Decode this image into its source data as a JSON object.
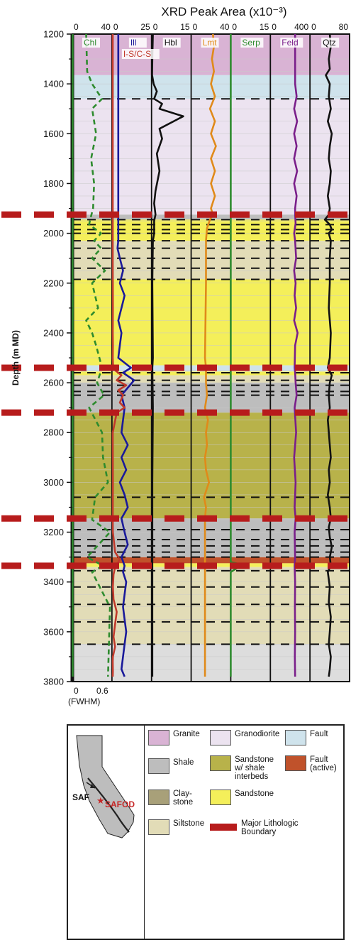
{
  "title": "XRD Peak Area (x10⁻³)",
  "ylabel": "Depth (m MD)",
  "fwhm_scale": {
    "ticks": [
      "0",
      "0.6"
    ],
    "label": "(FWHM)"
  },
  "chart_data": {
    "type": "line",
    "title": "XRD Peak Area (x10⁻³)",
    "ylabel": "Depth (m MD)",
    "ylim": [
      1200,
      3800
    ],
    "yticks": [
      1200,
      1400,
      1600,
      1800,
      2000,
      2200,
      2400,
      2600,
      2800,
      3000,
      3200,
      3400,
      3600,
      3800
    ],
    "top_ticks": [
      "0",
      "40",
      "0",
      "25",
      "0",
      "15",
      "0",
      "40",
      "0",
      "15",
      "0",
      "400",
      "0",
      "80"
    ],
    "columns": [
      {
        "name": "Chl",
        "xlim": [
          0,
          40
        ],
        "color": "#2e8b2e"
      },
      {
        "name": "Ill / I-S/C-S",
        "xlim": [
          0,
          25
        ],
        "color": "#1a1a9a"
      },
      {
        "name": "Hbl",
        "xlim": [
          0,
          15
        ],
        "color": "#111111"
      },
      {
        "name": "Lmt",
        "xlim": [
          0,
          40
        ],
        "color": "#e08a1a"
      },
      {
        "name": "Serp",
        "xlim": [
          0,
          15
        ],
        "color": "#2e8b2e"
      },
      {
        "name": "Feld",
        "xlim": [
          0,
          400
        ],
        "color": "#7a1f8a"
      },
      {
        "name": "Qtz",
        "xlim": [
          0,
          80
        ],
        "color": "#111111"
      }
    ],
    "lithology": [
      {
        "from": 1200,
        "to": 1365,
        "unit": "Granite"
      },
      {
        "from": 1365,
        "to": 1460,
        "unit": "Fault"
      },
      {
        "from": 1460,
        "to": 1925,
        "unit": "Granodiorite"
      },
      {
        "from": 1925,
        "to": 1945,
        "unit": "Shale"
      },
      {
        "from": 1945,
        "to": 2030,
        "unit": "Sandstone"
      },
      {
        "from": 2030,
        "to": 2185,
        "unit": "Siltstone"
      },
      {
        "from": 2185,
        "to": 2530,
        "unit": "Sandstone"
      },
      {
        "from": 2530,
        "to": 2555,
        "unit": "Fault"
      },
      {
        "from": 2555,
        "to": 2570,
        "unit": "Sandstone"
      },
      {
        "from": 2570,
        "to": 2600,
        "unit": "Siltstone"
      },
      {
        "from": 2600,
        "to": 2720,
        "unit": "Shale"
      },
      {
        "from": 2720,
        "to": 3060,
        "unit": "Sandstone w/ shale interbeds"
      },
      {
        "from": 3060,
        "to": 3145,
        "unit": "Sandstone w/ shale interbeds"
      },
      {
        "from": 3145,
        "to": 3300,
        "unit": "Shale"
      },
      {
        "from": 3300,
        "to": 3325,
        "unit": "Fault (active)"
      },
      {
        "from": 3325,
        "to": 3340,
        "unit": "Sandstone"
      },
      {
        "from": 3340,
        "to": 3650,
        "unit": "Siltstone"
      },
      {
        "from": 3650,
        "to": 3800,
        "unit": "Claystone"
      }
    ],
    "major_boundaries": [
      1925,
      2540,
      2720,
      3145,
      3335
    ],
    "minor_boundaries": [
      1460,
      1945,
      1965,
      1985,
      2000,
      2030,
      2060,
      2100,
      2140,
      2185,
      2560,
      2590,
      2610,
      2635,
      2650,
      3060,
      3190,
      3230,
      3255,
      3280,
      3300,
      3355,
      3420,
      3490,
      3560,
      3650
    ],
    "series": [
      {
        "name": "Chl",
        "col": 0,
        "x": [
          0.3,
          0.35,
          0.3,
          0.35,
          0.3,
          0.25,
          0.35,
          0.3,
          0.35,
          0.2,
          0.3,
          0.25,
          0.35,
          0.3,
          0.3,
          0.28,
          0.32,
          0.3,
          0.35,
          0.3,
          0.3,
          0.32,
          0.3,
          0.35
        ],
        "y": [
          1200,
          1300,
          1400,
          1500,
          1600,
          1700,
          1800,
          1900,
          1960,
          2000,
          2050,
          2150,
          2300,
          2450,
          2560,
          2650,
          2800,
          3000,
          3150,
          3250,
          3335,
          3450,
          3600,
          3780
        ]
      },
      {
        "name": "Chl (FWHM)",
        "col": 0,
        "dashed": true,
        "x": [
          14,
          15,
          20,
          30,
          20,
          24,
          19,
          22,
          21,
          18,
          17,
          29,
          22,
          29,
          20,
          33,
          20,
          26,
          14,
          20,
          24,
          30,
          25,
          32,
          17,
          30,
          31,
          36,
          23,
          20,
          38,
          15,
          31,
          20,
          38,
          36
        ],
        "y": [
          1200,
          1350,
          1400,
          1460,
          1500,
          1600,
          1700,
          1800,
          1900,
          1945,
          1965,
          2000,
          2030,
          2060,
          2100,
          2150,
          2200,
          2300,
          2350,
          2400,
          2450,
          2540,
          2600,
          2650,
          2700,
          2800,
          2900,
          3000,
          3060,
          3150,
          3200,
          3300,
          3335,
          3360,
          3500,
          3780
        ]
      },
      {
        "name": "Ill",
        "col": 1,
        "x": [
          4,
          4,
          4,
          4,
          4,
          4,
          4,
          4,
          3.5,
          5,
          7,
          5,
          8,
          6,
          4,
          6,
          5,
          4,
          12,
          7,
          14,
          10,
          6,
          8,
          7,
          6,
          10,
          6,
          9,
          5,
          8,
          10,
          6,
          8,
          10,
          6,
          8,
          7,
          9,
          8,
          7,
          8,
          9,
          8,
          7,
          6,
          8
        ],
        "y": [
          1200,
          1400,
          1600,
          1800,
          1925,
          1960,
          2000,
          2030,
          2060,
          2100,
          2150,
          2200,
          2250,
          2300,
          2350,
          2400,
          2450,
          2500,
          2540,
          2560,
          2590,
          2620,
          2650,
          2700,
          2750,
          2800,
          2850,
          2900,
          2950,
          3000,
          3050,
          3100,
          3145,
          3200,
          3250,
          3300,
          3335,
          3360,
          3400,
          3450,
          3500,
          3550,
          3600,
          3650,
          3700,
          3750,
          3780
        ]
      },
      {
        "name": "I-S/C-S",
        "col": 1,
        "x": [
          0.5,
          0.5,
          0.5,
          0.5,
          0.6,
          0.5,
          0.6,
          0.5,
          0.7,
          2,
          6,
          3,
          9,
          4,
          7,
          5,
          8,
          3,
          0.5,
          0.6,
          0.5,
          0.6,
          2,
          5,
          3,
          2,
          1,
          0.6,
          1,
          3,
          2,
          1,
          2,
          0.6,
          0.5,
          0.6,
          0.5
        ],
        "y": [
          1200,
          1500,
          1800,
          2100,
          2300,
          2400,
          2450,
          2500,
          2530,
          2550,
          2570,
          2590,
          2610,
          2630,
          2650,
          2680,
          2700,
          2720,
          2800,
          3000,
          3145,
          3200,
          3280,
          3310,
          3330,
          3340,
          3370,
          3420,
          3470,
          3520,
          3570,
          3620,
          3660,
          3700,
          3720,
          3760,
          3780
        ]
      },
      {
        "name": "Hbl",
        "col": 2,
        "x": [
          0.5,
          0.3,
          0.2,
          0.8,
          2,
          1,
          4,
          3,
          12,
          3,
          4,
          2,
          3,
          1.5,
          1,
          1.5,
          1,
          1,
          0.5,
          0.3,
          0.5,
          0.3,
          0.5,
          0.3,
          0.3,
          0.3,
          0.3,
          0.3
        ],
        "y": [
          1200,
          1300,
          1365,
          1400,
          1430,
          1460,
          1480,
          1500,
          1530,
          1580,
          1620,
          1680,
          1750,
          1830,
          1880,
          1925,
          1950,
          2000,
          2030,
          2200,
          2500,
          2540,
          2700,
          3000,
          3300,
          3335,
          3500,
          3780
        ]
      },
      {
        "name": "Lmt",
        "col": 3,
        "x": [
          22,
          23,
          21,
          23,
          20,
          24,
          19,
          24,
          20,
          25,
          20,
          24,
          20,
          24,
          20,
          22,
          19,
          16,
          15,
          15,
          14,
          15,
          15,
          16,
          14,
          17,
          15,
          16,
          14,
          15,
          18,
          13,
          15,
          14,
          14,
          14,
          14,
          14,
          14,
          14,
          14
        ],
        "y": [
          1200,
          1250,
          1300,
          1350,
          1400,
          1450,
          1500,
          1550,
          1600,
          1650,
          1700,
          1750,
          1800,
          1850,
          1900,
          1925,
          1945,
          1980,
          2030,
          2200,
          2500,
          2540,
          2600,
          2650,
          2700,
          2750,
          2800,
          2850,
          2900,
          2950,
          3000,
          3060,
          3100,
          3145,
          3200,
          3300,
          3335,
          3400,
          3500,
          3650,
          3780
        ]
      },
      {
        "name": "Serp",
        "col": 4,
        "x": [
          0,
          0,
          0,
          0,
          0,
          0,
          2,
          6,
          3,
          0,
          0,
          0
        ],
        "y": [
          1200,
          2000,
          2800,
          3200,
          3300,
          3320,
          3325,
          3335,
          3340,
          3360,
          3500,
          3780
        ]
      },
      {
        "name": "Feld",
        "col": 5,
        "x": [
          250,
          250,
          265,
          240,
          270,
          240,
          265,
          240,
          270,
          240,
          265,
          250,
          250,
          255,
          240,
          250,
          260,
          240,
          255,
          245,
          260,
          240,
          275,
          250,
          245,
          250,
          255,
          265,
          245,
          260,
          240,
          255,
          245,
          255,
          245,
          250,
          245,
          250,
          248,
          250,
          247,
          250
        ],
        "y": [
          1200,
          1400,
          1450,
          1500,
          1550,
          1600,
          1650,
          1700,
          1750,
          1800,
          1850,
          1900,
          1925,
          1960,
          2000,
          2030,
          2100,
          2150,
          2200,
          2250,
          2300,
          2350,
          2400,
          2450,
          2540,
          2560,
          2600,
          2650,
          2700,
          2800,
          2900,
          3000,
          3100,
          3145,
          3200,
          3300,
          3335,
          3400,
          3500,
          3600,
          3700,
          3780
        ]
      },
      {
        "name": "Qtz",
        "col": 6,
        "x": [
          40,
          42,
          38,
          40,
          32,
          40,
          38,
          42,
          36,
          44,
          40,
          38,
          42,
          40,
          36,
          40,
          38,
          30,
          40,
          44,
          38,
          42,
          40,
          40,
          38,
          42,
          40,
          36,
          44,
          40,
          38,
          40,
          36,
          38,
          40,
          42,
          38,
          40,
          36,
          40,
          42,
          38,
          40,
          44,
          40,
          42,
          36,
          40,
          38,
          42,
          40,
          38,
          42,
          40,
          38
        ],
        "y": [
          1200,
          1250,
          1300,
          1340,
          1365,
          1400,
          1450,
          1500,
          1550,
          1600,
          1650,
          1700,
          1750,
          1800,
          1850,
          1900,
          1925,
          1945,
          1965,
          1985,
          2000,
          2030,
          2100,
          2200,
          2300,
          2400,
          2500,
          2540,
          2570,
          2600,
          2650,
          2700,
          2750,
          2800,
          2850,
          2900,
          2950,
          3000,
          3050,
          3100,
          3145,
          3180,
          3220,
          3260,
          3300,
          3335,
          3360,
          3420,
          3480,
          3540,
          3600,
          3650,
          3700,
          3750,
          3780
        ]
      }
    ]
  },
  "legend": {
    "items": [
      {
        "label": "Granite",
        "color": "#d9b3d4"
      },
      {
        "label": "Granodiorite",
        "color": "#ece3f0"
      },
      {
        "label": "Fault",
        "color": "#cfe3ec"
      },
      {
        "label": "Shale",
        "color": "#bdbdbd"
      },
      {
        "label": "Sandstone w/ shale interbeds",
        "color": "#b8b24a"
      },
      {
        "label": "Fault (active)",
        "color": "#c0522b"
      },
      {
        "label": "Clay-stone",
        "color": "#a8a079"
      },
      {
        "label": "Sandstone",
        "color": "#f4ef5a"
      },
      {
        "label": "Siltstone",
        "color": "#e2dcb7"
      },
      {
        "label": "Major Lithologic Boundary",
        "color": "#b71c1c"
      }
    ],
    "map": {
      "saf": "SAF",
      "safod": "SAFOD"
    }
  }
}
